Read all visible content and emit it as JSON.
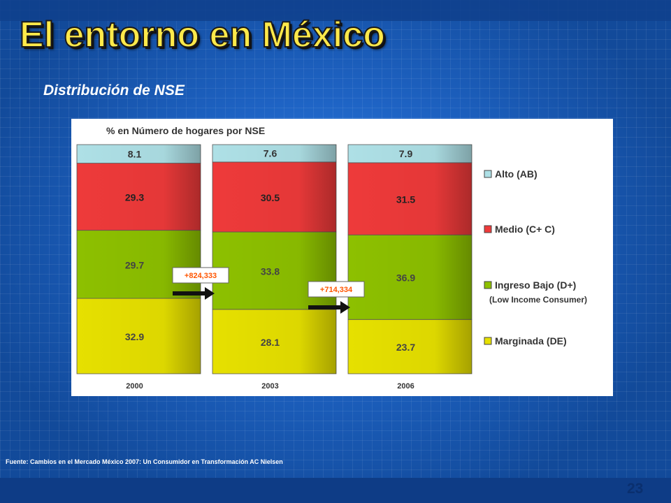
{
  "slide": {
    "title": "El entorno en México",
    "subtitle": "Distribución de NSE",
    "source": "Fuente: Cambios en el Mercado México 2007: Un Consumidor en Transformación AC Nielsen",
    "page_number": "23"
  },
  "chart_data": {
    "type": "bar",
    "stacked": true,
    "title": "% en Número de hogares por NSE",
    "categories": [
      "2000",
      "2003",
      "2006"
    ],
    "series": [
      {
        "name": "Marginada (DE)",
        "values": [
          32.9,
          28.1,
          23.7
        ],
        "color": "#e6e000"
      },
      {
        "name": "Ingreso Bajo (D+)",
        "values": [
          29.7,
          33.8,
          36.9
        ],
        "color": "#8dc000"
      },
      {
        "name": "Medio (C+ C)",
        "values": [
          29.3,
          30.5,
          31.5
        ],
        "color": "#ee3a3a"
      },
      {
        "name": "Alto (AB)",
        "values": [
          8.1,
          7.6,
          7.9
        ],
        "color": "#aee0e6"
      }
    ],
    "legend": {
      "placement": "right",
      "extra_note": "(Low Income Consumer)"
    },
    "annotations": [
      {
        "text": "+824,333",
        "between": [
          "2000",
          "2003"
        ],
        "color": "#ff5500"
      },
      {
        "text": "+714,334",
        "between": [
          "2003",
          "2006"
        ],
        "color": "#ff5500"
      }
    ],
    "ylim": [
      0,
      100
    ],
    "grid": false
  }
}
